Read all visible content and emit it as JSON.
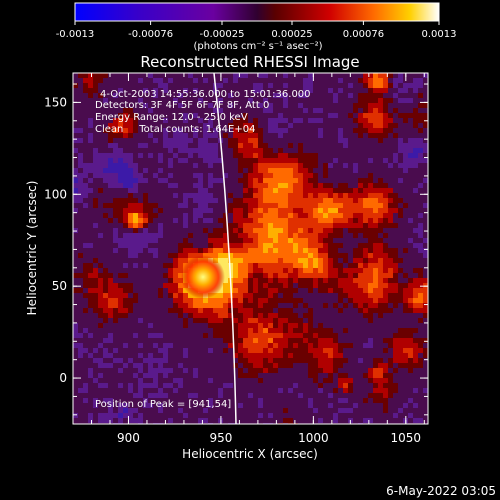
{
  "colorbar": {
    "tick_labels": [
      "-0.0013",
      "-0.00076",
      "-0.00025",
      "0.00025",
      "0.00076",
      "0.0013"
    ],
    "units_line": "(photons cm⁻² s⁻¹ asec⁻²)",
    "min": -0.0013,
    "max": 0.0013
  },
  "title": "Reconstructed RHESSI Image",
  "info": {
    "time_range": "4-Oct-2003 14:55:36.000 to 15:01:36.000",
    "detectors": "Detectors: 3F 4F 5F 6F 7F 8F, Att 0",
    "energy": "Energy Range: 12.0 - 25.0 keV",
    "clean": "Clean     Total counts: 1.64E+04",
    "peak": "Position of Peak = [941,54]"
  },
  "axes": {
    "xlabel": "Heliocentric X (arcsec)",
    "ylabel": "Heliocentric Y (arcsec)",
    "x_ticks": [
      "900",
      "950",
      "1000",
      "1050"
    ],
    "y_ticks": [
      "150",
      "100",
      "50",
      "0"
    ],
    "xlim": [
      870,
      1062
    ],
    "ylim": [
      -25,
      166
    ]
  },
  "timestamp": "6-May-2022 03:05",
  "colors": {
    "background": "#000000",
    "limb": "#ffffff"
  }
}
